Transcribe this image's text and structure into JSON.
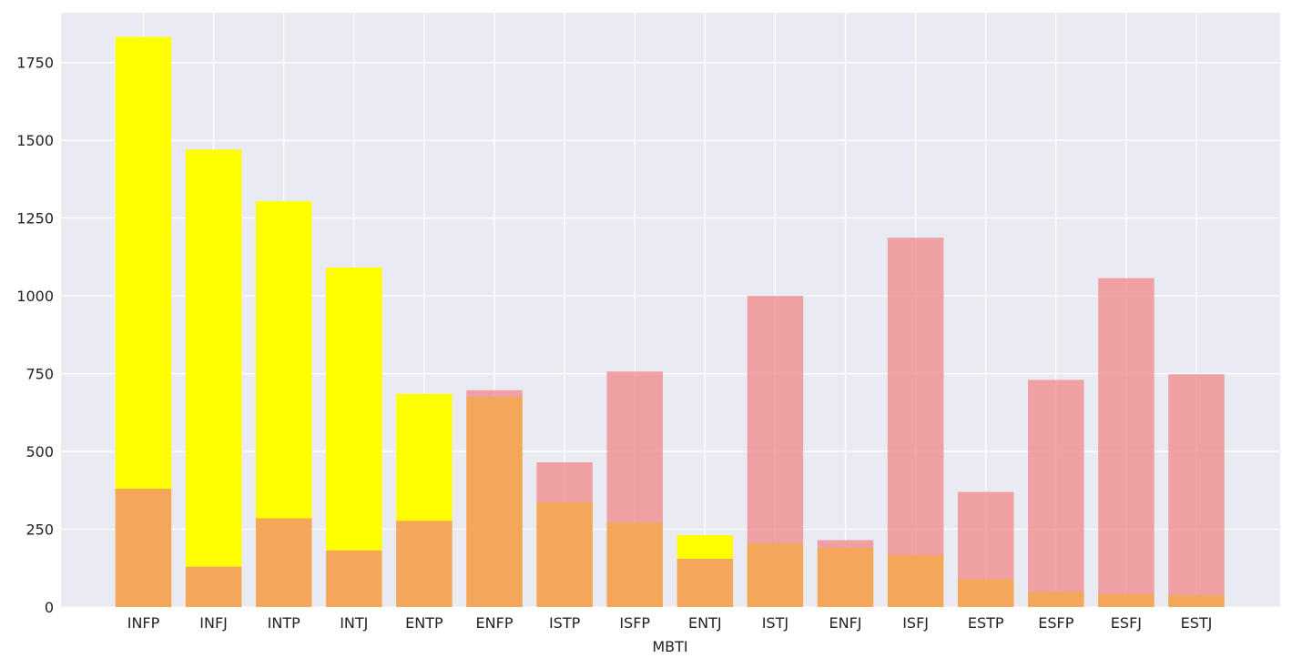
{
  "chart_data": {
    "type": "bar",
    "overlay": true,
    "xlabel": "MBTI",
    "ylabel": "",
    "ylim": [
      0,
      1910
    ],
    "yticks": [
      0,
      250,
      500,
      750,
      1000,
      1250,
      1500,
      1750
    ],
    "grid": true,
    "legend": "none",
    "categories": [
      "INFP",
      "INFJ",
      "INTP",
      "INTJ",
      "ENTP",
      "ENFP",
      "ISTP",
      "ISFP",
      "ENTJ",
      "ISTJ",
      "ENFJ",
      "ISFJ",
      "ESTP",
      "ESFP",
      "ESFJ",
      "ESTJ"
    ],
    "series": [
      {
        "color": "#ffff00",
        "opacity": 1,
        "values": [
          1832,
          1470,
          1304,
          1091,
          685,
          675,
          337,
          271,
          231,
          205,
          190,
          166,
          89,
          48,
          42,
          39
        ]
      },
      {
        "color": "#f08080",
        "opacity": 0.7,
        "values": [
          380,
          130,
          285,
          182,
          277,
          697,
          465,
          757,
          155,
          1000,
          215,
          1187,
          370,
          730,
          1057,
          748
        ]
      }
    ]
  }
}
